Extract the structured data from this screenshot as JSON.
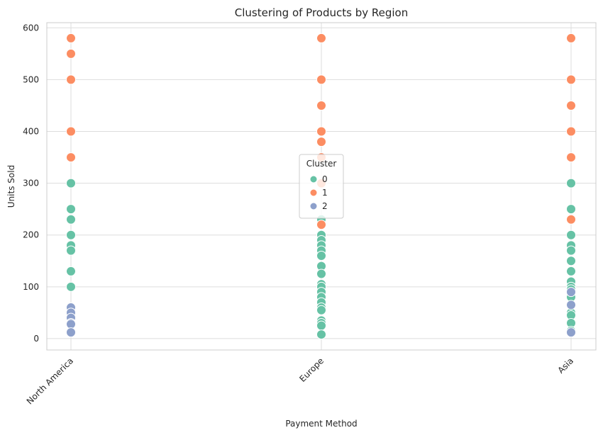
{
  "chart_data": {
    "type": "scatter",
    "title": "Clustering of Products by Region",
    "xlabel": "Payment Method",
    "ylabel": "Units Sold",
    "categories": [
      "North America",
      "Europe",
      "Asia"
    ],
    "ylim": [
      -22,
      610
    ],
    "yticks": [
      0,
      100,
      200,
      300,
      400,
      500,
      600
    ],
    "grid": true,
    "legend": {
      "title": "Cluster",
      "placement": "center",
      "entries": [
        "0",
        "1",
        "2"
      ]
    },
    "colors": {
      "0": "#66c2a5",
      "1": "#fc8d62",
      "2": "#8da0cb"
    },
    "series": [
      {
        "name": "0",
        "points": [
          [
            "North America",
            300
          ],
          [
            "North America",
            250
          ],
          [
            "North America",
            230
          ],
          [
            "North America",
            200
          ],
          [
            "North America",
            180
          ],
          [
            "North America",
            170
          ],
          [
            "North America",
            130
          ],
          [
            "North America",
            100
          ],
          [
            "Europe",
            230
          ],
          [
            "Europe",
            200
          ],
          [
            "Europe",
            190
          ],
          [
            "Europe",
            180
          ],
          [
            "Europe",
            170
          ],
          [
            "Europe",
            160
          ],
          [
            "Europe",
            140
          ],
          [
            "Europe",
            125
          ],
          [
            "Europe",
            105
          ],
          [
            "Europe",
            100
          ],
          [
            "Europe",
            90
          ],
          [
            "Europe",
            80
          ],
          [
            "Europe",
            70
          ],
          [
            "Europe",
            60
          ],
          [
            "Europe",
            55
          ],
          [
            "Europe",
            35
          ],
          [
            "Europe",
            30
          ],
          [
            "Europe",
            25
          ],
          [
            "Europe",
            8
          ],
          [
            "Asia",
            300
          ],
          [
            "Asia",
            250
          ],
          [
            "Asia",
            200
          ],
          [
            "Asia",
            180
          ],
          [
            "Asia",
            170
          ],
          [
            "Asia",
            150
          ],
          [
            "Asia",
            130
          ],
          [
            "Asia",
            110
          ],
          [
            "Asia",
            100
          ],
          [
            "Asia",
            95
          ],
          [
            "Asia",
            80
          ],
          [
            "Asia",
            50
          ],
          [
            "Asia",
            45
          ],
          [
            "Asia",
            30
          ],
          [
            "Asia",
            15
          ]
        ]
      },
      {
        "name": "1",
        "points": [
          [
            "North America",
            580
          ],
          [
            "North America",
            550
          ],
          [
            "North America",
            500
          ],
          [
            "North America",
            400
          ],
          [
            "North America",
            350
          ],
          [
            "Europe",
            580
          ],
          [
            "Europe",
            500
          ],
          [
            "Europe",
            450
          ],
          [
            "Europe",
            400
          ],
          [
            "Europe",
            380
          ],
          [
            "Europe",
            350
          ],
          [
            "Europe",
            300
          ],
          [
            "Europe",
            220
          ],
          [
            "Asia",
            580
          ],
          [
            "Asia",
            500
          ],
          [
            "Asia",
            450
          ],
          [
            "Asia",
            400
          ],
          [
            "Asia",
            350
          ],
          [
            "Asia",
            230
          ]
        ]
      },
      {
        "name": "2",
        "points": [
          [
            "North America",
            60
          ],
          [
            "North America",
            50
          ],
          [
            "North America",
            40
          ],
          [
            "North America",
            30
          ],
          [
            "North America",
            28
          ],
          [
            "North America",
            12
          ],
          [
            "Asia",
            90
          ],
          [
            "Asia",
            65
          ],
          [
            "Asia",
            12
          ]
        ]
      }
    ]
  }
}
